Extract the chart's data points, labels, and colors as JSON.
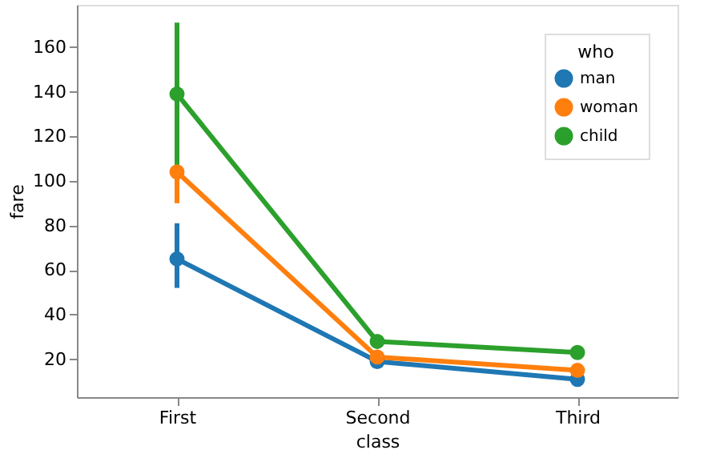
{
  "chart_data": {
    "type": "line",
    "xlabel": "class",
    "ylabel": "fare",
    "legend_title": "who",
    "legend": "top right",
    "grid": false,
    "marker": "circle",
    "line_style": "solid",
    "categories": [
      "First",
      "Second",
      "Third"
    ],
    "ylim": [
      3,
      179
    ],
    "yticks": [
      20,
      40,
      60,
      80,
      100,
      120,
      140,
      160
    ],
    "series": [
      {
        "name": "man",
        "color": "#1f77b4",
        "values": [
          65,
          19,
          11
        ],
        "errors": [
          [
            52,
            81
          ],
          null,
          null
        ]
      },
      {
        "name": "woman",
        "color": "#ff7f0e",
        "values": [
          104,
          21,
          15
        ],
        "errors": [
          [
            90,
            118
          ],
          null,
          null
        ]
      },
      {
        "name": "child",
        "color": "#2ca02c",
        "values": [
          139,
          28,
          23
        ],
        "errors": [
          [
            107,
            171
          ],
          [
            25,
            31
          ],
          [
            21,
            25
          ]
        ]
      }
    ]
  }
}
